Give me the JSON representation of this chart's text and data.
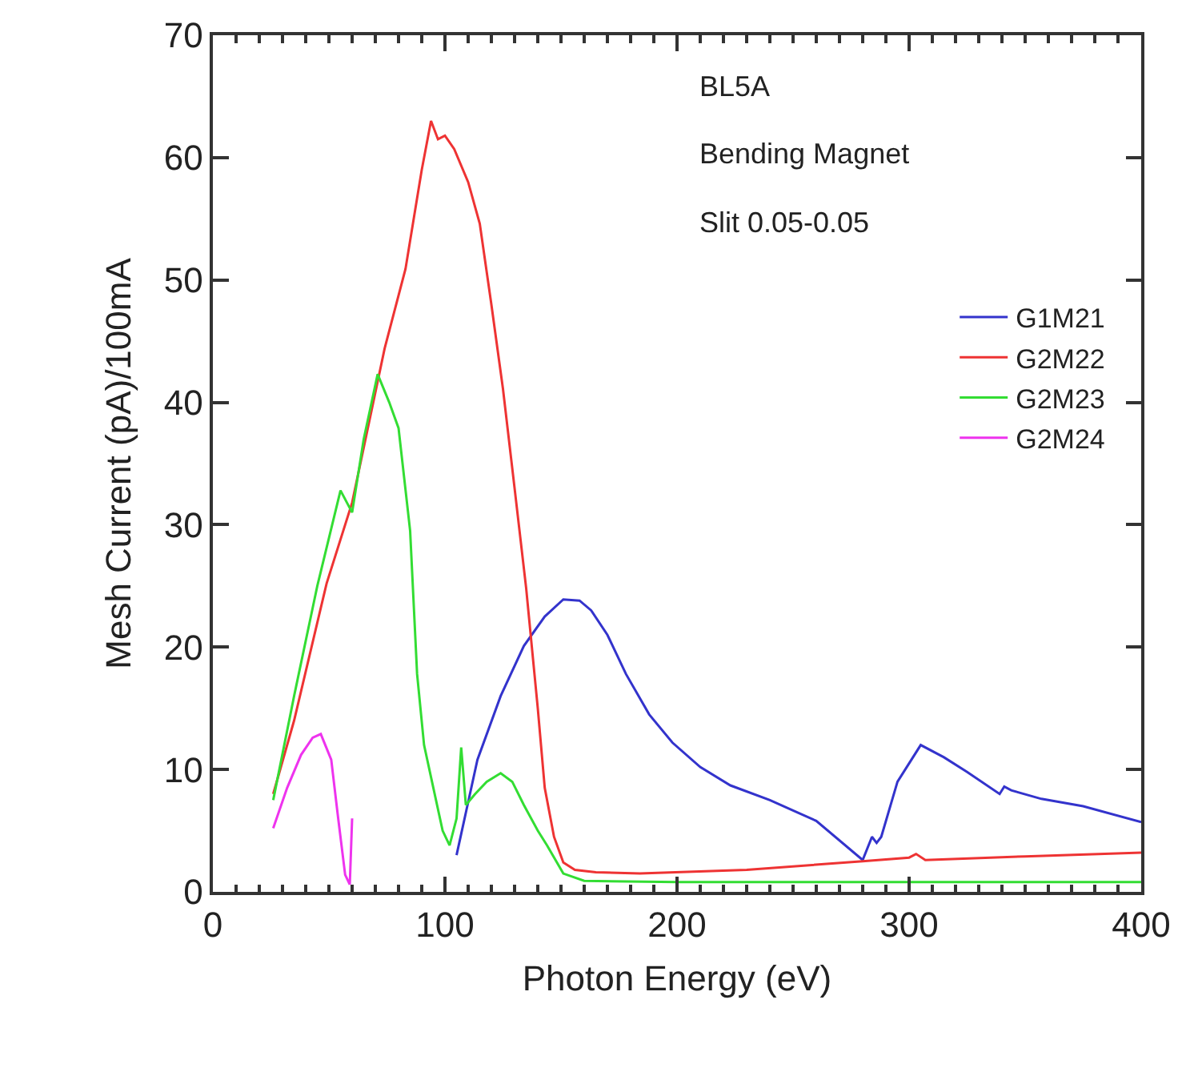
{
  "chart_data": {
    "type": "line",
    "xlabel": "Photon Energy (eV)",
    "ylabel": "Mesh Current (pA)/100mA",
    "annotations": [
      "BL5A",
      "Bending Magnet",
      "Slit 0.05-0.05"
    ],
    "xlim": [
      0,
      400
    ],
    "xticks": [
      0,
      100,
      200,
      300,
      400
    ],
    "ylim": [
      0,
      70
    ],
    "yticks": [
      0,
      10,
      20,
      30,
      40,
      50,
      60,
      70
    ],
    "grid": false,
    "legend": "right",
    "marker": "none",
    "line_style": "solid",
    "series": [
      {
        "name": "G1M21",
        "color": "#3333cc",
        "x": [
          105,
          114,
          124,
          134,
          143,
          151,
          158,
          163,
          170,
          178,
          188,
          198,
          210,
          223,
          240,
          260,
          280,
          284,
          286,
          288,
          295,
          305,
          315,
          325,
          339,
          341,
          344,
          357,
          375,
          400
        ],
        "values": [
          3,
          10.8,
          16,
          20.1,
          22.5,
          23.9,
          23.8,
          23,
          21,
          17.8,
          14.5,
          12.2,
          10.2,
          8.7,
          7.5,
          5.8,
          2.6,
          4.5,
          4,
          4.5,
          9,
          12,
          11,
          9.8,
          8,
          8.6,
          8.3,
          7.6,
          7,
          5.7
        ]
      },
      {
        "name": "G2M22",
        "color": "#ee3333",
        "x": [
          26,
          35,
          49,
          60,
          74,
          83,
          90,
          94,
          97,
          100,
          104,
          110,
          115,
          120,
          125,
          130,
          135,
          140,
          143,
          147,
          151,
          156,
          165,
          184,
          230,
          280,
          300,
          303,
          307,
          350,
          400
        ],
        "values": [
          8,
          14,
          25.2,
          31.8,
          44.4,
          50.9,
          59,
          63,
          61.5,
          61.8,
          60.7,
          58,
          54.6,
          48,
          41.1,
          33,
          24.8,
          15,
          8.5,
          4.5,
          2.4,
          1.8,
          1.6,
          1.5,
          1.8,
          2.5,
          2.8,
          3.1,
          2.6,
          2.9,
          3.2
        ]
      },
      {
        "name": "G2M23",
        "color": "#33dd33",
        "x": [
          26,
          35,
          45,
          55,
          60,
          65,
          71,
          76,
          80,
          85,
          88,
          91,
          95,
          99,
          102,
          105,
          107,
          109,
          113,
          118,
          124,
          129,
          134,
          140,
          144,
          151,
          160,
          200,
          300,
          400
        ],
        "values": [
          7.5,
          16,
          25,
          32.8,
          31,
          37,
          42.3,
          40,
          37.9,
          29.5,
          17.8,
          12,
          8.5,
          5,
          3.8,
          6,
          11.8,
          7.1,
          8,
          9,
          9.7,
          9,
          7.1,
          5,
          3.8,
          1.5,
          0.9,
          0.8,
          0.8,
          0.8
        ]
      },
      {
        "name": "G2M24",
        "color": "#ee33ee",
        "x": [
          26,
          32,
          38,
          43,
          46.5,
          51,
          54,
          57,
          59,
          60
        ],
        "values": [
          5.2,
          8.5,
          11.2,
          12.6,
          12.9,
          10.8,
          6,
          1.4,
          0.6,
          6
        ]
      }
    ]
  }
}
